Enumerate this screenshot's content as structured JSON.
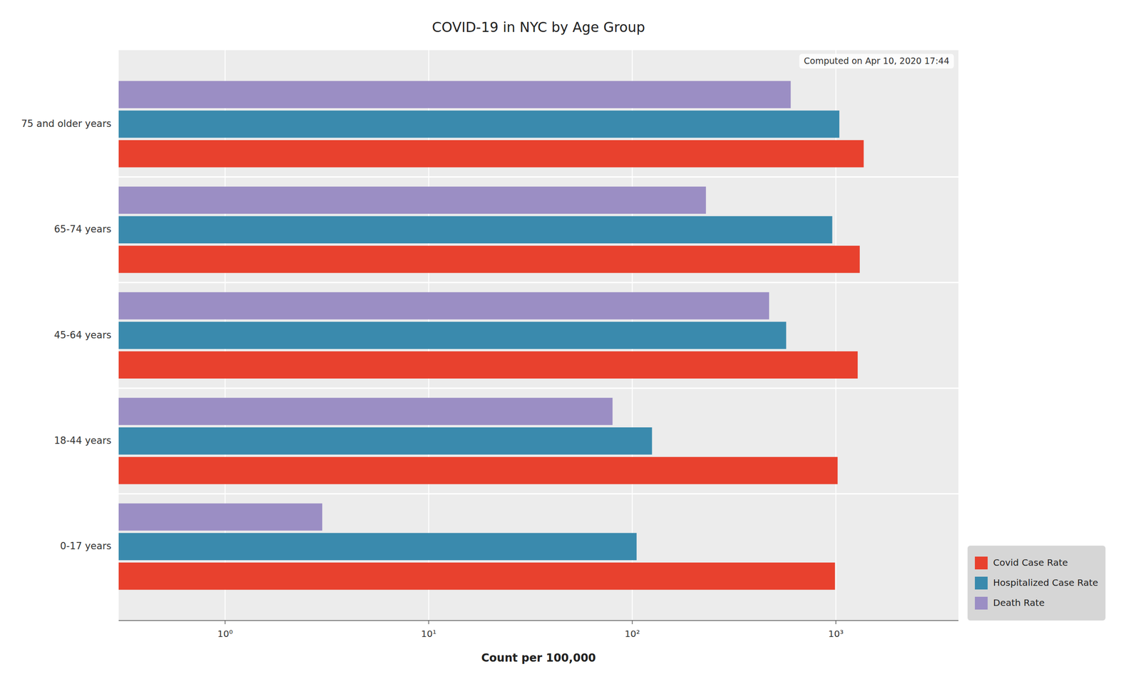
{
  "chart_data": {
    "type": "bar",
    "orientation": "horizontal",
    "title": "COVID-19 in NYC by Age Group",
    "subtitle": "Computed on Apr 10, 2020 17:44",
    "x_label": "Count per 100,000",
    "categories": [
      "0-17 years",
      "18-44 years",
      "45-64 years",
      "65-74 years",
      "75 and older years"
    ],
    "series": [
      {
        "name": "Covid Case Rate",
        "color": "#e8412e",
        "values": [
          990,
          1020,
          1280,
          1310,
          1370
        ]
      },
      {
        "name": "Hospitalized Case Rate",
        "color": "#3a8aad",
        "values": [
          105,
          125,
          570,
          960,
          1040
        ]
      },
      {
        "name": "Death Rate",
        "color": "#9b8ec4",
        "values": [
          3,
          80,
          470,
          230,
          600
        ]
      }
    ],
    "log": "x",
    "xlim": [
      0.3,
      4000
    ],
    "xticks": [
      {
        "value": 1,
        "label": "10⁰"
      },
      {
        "value": 10,
        "label": "10¹"
      },
      {
        "value": 100,
        "label": "10²"
      },
      {
        "value": 1000,
        "label": "10³"
      }
    ],
    "grid": true,
    "legend": "lower right"
  }
}
